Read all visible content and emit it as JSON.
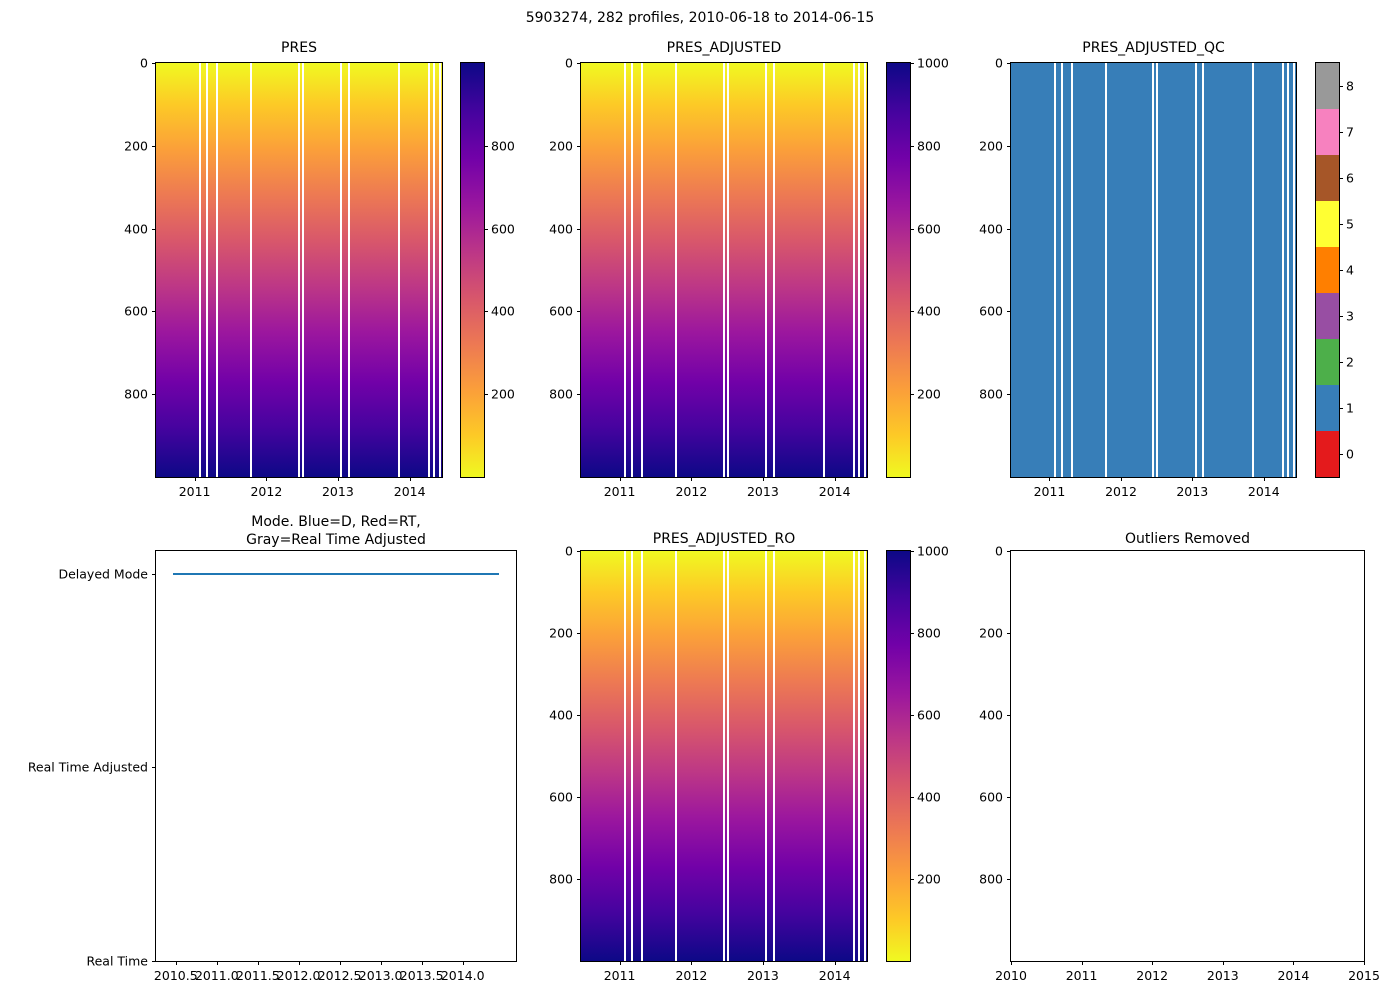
{
  "suptitle": "5903274, 282 profiles, 2010-06-18 to 2014-06-15",
  "colors": {
    "qc_fill": "#377eb8",
    "mode_line": "#1f77b4",
    "plasma_top": "#f0f921",
    "plasma_bottom": "#0d0887"
  },
  "shared": {
    "depth_yticks": [
      {
        "label": "0",
        "pct": 0
      },
      {
        "label": "200",
        "pct": 20
      },
      {
        "label": "400",
        "pct": 40
      },
      {
        "label": "600",
        "pct": 60
      },
      {
        "label": "800",
        "pct": 80
      }
    ],
    "heatmap_xticks": [
      {
        "label": "2011",
        "pct": 13.5
      },
      {
        "label": "2012",
        "pct": 38.6
      },
      {
        "label": "2013",
        "pct": 63.6
      },
      {
        "label": "2014",
        "pct": 88.7
      }
    ],
    "stripes_pct": [
      15,
      17.5,
      21,
      33,
      49.5,
      51,
      64.5,
      67,
      84.5,
      95,
      97,
      99
    ]
  },
  "panels": {
    "pres": {
      "title": "PRES",
      "cbar_ticks": [
        {
          "label": "800",
          "pct": 20
        },
        {
          "label": "600",
          "pct": 40
        },
        {
          "label": "400",
          "pct": 60
        },
        {
          "label": "200",
          "pct": 80
        }
      ]
    },
    "pres_adjusted": {
      "title": "PRES_ADJUSTED",
      "cbar_ticks": [
        {
          "label": "1000",
          "pct": 0
        },
        {
          "label": "800",
          "pct": 20
        },
        {
          "label": "600",
          "pct": 40
        },
        {
          "label": "400",
          "pct": 60
        },
        {
          "label": "200",
          "pct": 80
        }
      ]
    },
    "pres_adjusted_qc": {
      "title": "PRES_ADJUSTED_QC",
      "qc_colors": [
        "#e41a1c",
        "#377eb8",
        "#4daf4a",
        "#984ea3",
        "#ff7f00",
        "#ffff33",
        "#a65628",
        "#f781bf",
        "#999999"
      ],
      "cbar_ticks": [
        {
          "label": "8",
          "pct": 5.6
        },
        {
          "label": "7",
          "pct": 16.7
        },
        {
          "label": "6",
          "pct": 27.8
        },
        {
          "label": "5",
          "pct": 38.9
        },
        {
          "label": "4",
          "pct": 50
        },
        {
          "label": "3",
          "pct": 61.1
        },
        {
          "label": "2",
          "pct": 72.2
        },
        {
          "label": "1",
          "pct": 83.3
        },
        {
          "label": "0",
          "pct": 94.4
        }
      ]
    },
    "mode": {
      "title": "Mode. Blue=D, Red=RT,\nGray=Real Time Adjusted",
      "yticks": [
        {
          "label": "Delayed Mode",
          "pct": 5.6
        },
        {
          "label": "Real Time Adjusted",
          "pct": 52.8
        },
        {
          "label": "Real Time",
          "pct": 100
        }
      ],
      "xticks": [
        {
          "label": "2010.5",
          "pct": 5.5
        },
        {
          "label": "2011.0",
          "pct": 16.9
        },
        {
          "label": "2011.5",
          "pct": 28.3
        },
        {
          "label": "2012.0",
          "pct": 39.6
        },
        {
          "label": "2012.5",
          "pct": 51.0
        },
        {
          "label": "2013.0",
          "pct": 62.4
        },
        {
          "label": "2013.5",
          "pct": 73.8
        },
        {
          "label": "2014.0",
          "pct": 85.2
        }
      ]
    },
    "pres_adjusted_ro": {
      "title": "PRES_ADJUSTED_RO",
      "cbar_ticks": [
        {
          "label": "1000",
          "pct": 0
        },
        {
          "label": "800",
          "pct": 20
        },
        {
          "label": "600",
          "pct": 40
        },
        {
          "label": "400",
          "pct": 60
        },
        {
          "label": "200",
          "pct": 80
        }
      ]
    },
    "outliers": {
      "title": "Outliers Removed",
      "xticks": [
        {
          "label": "2010",
          "pct": 0
        },
        {
          "label": "2011",
          "pct": 20
        },
        {
          "label": "2012",
          "pct": 40
        },
        {
          "label": "2013",
          "pct": 60
        },
        {
          "label": "2014",
          "pct": 80
        },
        {
          "label": "2015",
          "pct": 100
        }
      ]
    }
  },
  "chart_data": [
    {
      "type": "heatmap",
      "title": "PRES",
      "x_range_dates": [
        "2010-06-18",
        "2014-06-15"
      ],
      "x_ticks": [
        2011,
        2012,
        2013,
        2014
      ],
      "y_ticks": [
        0,
        200,
        400,
        600,
        800
      ],
      "y_range": [
        0,
        1000
      ],
      "n_profiles": 282,
      "colormap": "plasma",
      "colorbar_ticks": [
        200,
        400,
        600,
        800
      ],
      "colorbar_range": [
        0,
        1000
      ],
      "pattern": "pressure increases linearly with depth from ~0 dbar (yellow, top) to ~1000 dbar (dark blue, bottom) in every profile; thin white vertical columns mark missing profiles"
    },
    {
      "type": "heatmap",
      "title": "PRES_ADJUSTED",
      "x_ticks": [
        2011,
        2012,
        2013,
        2014
      ],
      "y_ticks": [
        0,
        200,
        400,
        600,
        800
      ],
      "y_range": [
        0,
        1000
      ],
      "colormap": "plasma",
      "colorbar_ticks": [
        200,
        400,
        600,
        800,
        1000
      ],
      "colorbar_range": [
        0,
        1000
      ],
      "pattern": "same linear 0-1000 dbar vertical gradient as PRES with identical white gap columns"
    },
    {
      "type": "heatmap",
      "title": "PRES_ADJUSTED_QC",
      "x_ticks": [
        2011,
        2012,
        2013,
        2014
      ],
      "y_ticks": [
        0,
        200,
        400,
        600,
        800
      ],
      "colormap": "discrete 9-color (Set1-style), flags 0-8",
      "colorbar_ticks": [
        0,
        1,
        2,
        3,
        4,
        5,
        6,
        7,
        8
      ],
      "colorbar_colors": [
        "#e41a1c",
        "#377eb8",
        "#4daf4a",
        "#984ea3",
        "#ff7f00",
        "#ffff33",
        "#a65628",
        "#f781bf",
        "#999999"
      ],
      "pattern": "uniform QC flag = 1 (blue) for all depths and all profiles; white vertical columns mark missing profiles"
    },
    {
      "type": "line",
      "title": "Mode. Blue=D, Red=RT, Gray=Real Time Adjusted",
      "x_ticks": [
        2010.5,
        2011.0,
        2011.5,
        2012.0,
        2012.5,
        2013.0,
        2013.5,
        2014.0
      ],
      "y_categories": [
        "Real Time",
        "Real Time Adjusted",
        "Delayed Mode"
      ],
      "series": [
        {
          "name": "processing mode",
          "color": "#1f77b4",
          "value": "Delayed Mode",
          "x_start": 2010.46,
          "x_end": 2014.45,
          "note": "flat blue line at Delayed Mode level across the full record"
        }
      ]
    },
    {
      "type": "heatmap",
      "title": "PRES_ADJUSTED_RO",
      "x_ticks": [
        2011,
        2012,
        2013,
        2014
      ],
      "y_ticks": [
        0,
        200,
        400,
        600,
        800
      ],
      "y_range": [
        0,
        1000
      ],
      "colormap": "plasma",
      "colorbar_ticks": [
        200,
        400,
        600,
        800,
        1000
      ],
      "colorbar_range": [
        0,
        1000
      ],
      "pattern": "same linear 0-1000 dbar vertical gradient as PRES_ADJUSTED"
    },
    {
      "type": "heatmap",
      "title": "Outliers Removed",
      "x_ticks": [
        2010,
        2011,
        2012,
        2013,
        2014,
        2015
      ],
      "y_ticks": [
        0,
        200,
        400,
        600,
        800
      ],
      "pattern": "empty axes - no outlier points plotted"
    }
  ]
}
